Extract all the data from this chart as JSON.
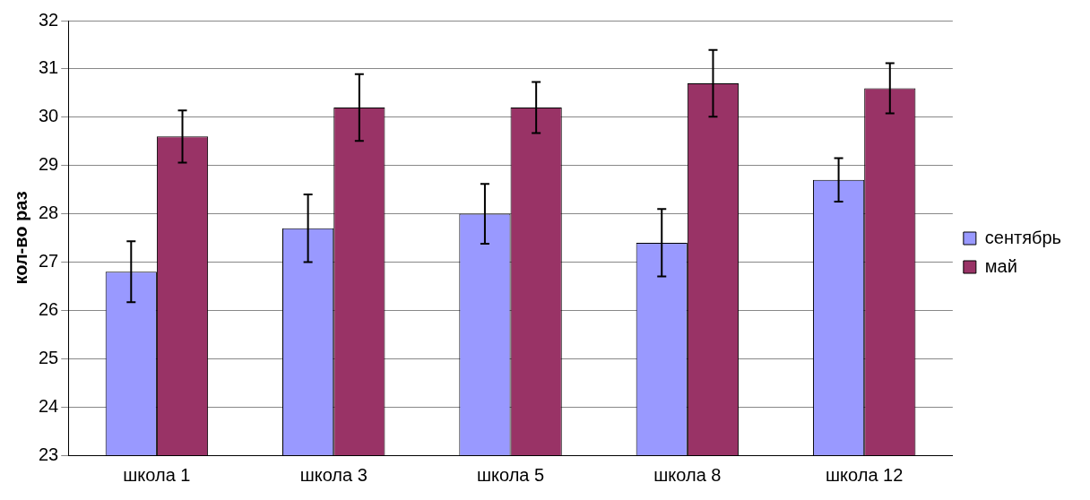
{
  "chart_data": {
    "type": "bar",
    "ylabel": "кол-во раз",
    "categories": [
      "школа 1",
      "школа 3",
      "школа 5",
      "школа 8",
      "школа 12"
    ],
    "series": [
      {
        "name": "сентябрь",
        "color": "#9999ff",
        "values": [
          26.8,
          27.7,
          28.0,
          27.4,
          28.7
        ],
        "errors": [
          0.63,
          0.7,
          0.62,
          0.7,
          0.45
        ]
      },
      {
        "name": "май",
        "color": "#993366",
        "values": [
          29.6,
          30.2,
          30.2,
          30.7,
          30.6
        ],
        "errors": [
          0.54,
          0.69,
          0.53,
          0.69,
          0.52
        ]
      }
    ],
    "ylim": [
      23,
      32
    ],
    "yticks": [
      23,
      24,
      25,
      26,
      27,
      28,
      29,
      30,
      31,
      32
    ],
    "grid": "y",
    "legend": "right"
  }
}
